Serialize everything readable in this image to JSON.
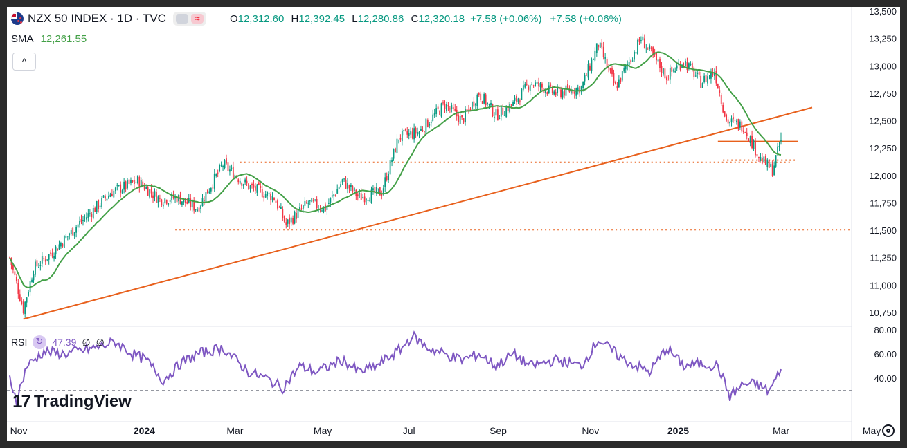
{
  "header": {
    "title": "NZX 50 INDEX · 1D · TVC",
    "flag_icon": "new-zealand-flag-icon",
    "ohlc": {
      "o_label": "O",
      "o": "12,312.60",
      "h_label": "H",
      "h": "12,392.45",
      "l_label": "L",
      "l": "12,280.86",
      "c_label": "C",
      "c": "12,320.18",
      "change1": "+7.58 (+0.06%)",
      "change2": "+7.58 (+0.06%)"
    },
    "colors": {
      "up": "#089981",
      "down": "#f23645"
    }
  },
  "sma": {
    "label": "SMA",
    "value": "12,261.55",
    "color": "#43a047"
  },
  "collapse_icon": "chevron-up-icon",
  "rsi": {
    "label": "RSI",
    "value": "47.39",
    "n1": "∅",
    "n2": "∅",
    "color": "#7e57c2"
  },
  "branding": {
    "logo_text": "TradingView",
    "logo_mark": "17"
  },
  "chart_data": [
    {
      "type": "candlestick",
      "title": "NZX 50 INDEX",
      "interval": "1D",
      "y_ticks": [
        "13,500",
        "13,250",
        "13,000",
        "12,750",
        "12,500",
        "12,250",
        "12,000",
        "11,750",
        "11,500",
        "11,250",
        "11,000",
        "10,750"
      ],
      "ylim": [
        10650,
        13500
      ],
      "x_ticks": [
        "Nov",
        "2024",
        "Mar",
        "May",
        "Jul",
        "Sep",
        "Nov",
        "2025",
        "Mar",
        "May"
      ],
      "close_anchors": [
        [
          0,
          11250
        ],
        [
          8,
          10780
        ],
        [
          14,
          11150
        ],
        [
          25,
          11300
        ],
        [
          40,
          11550
        ],
        [
          60,
          11850
        ],
        [
          75,
          11950
        ],
        [
          88,
          11780
        ],
        [
          98,
          11800
        ],
        [
          110,
          11700
        ],
        [
          125,
          12100
        ],
        [
          140,
          11900
        ],
        [
          155,
          11800
        ],
        [
          162,
          11550
        ],
        [
          175,
          11750
        ],
        [
          185,
          11700
        ],
        [
          195,
          11950
        ],
        [
          205,
          11800
        ],
        [
          218,
          11850
        ],
        [
          228,
          12350
        ],
        [
          240,
          12400
        ],
        [
          255,
          12650
        ],
        [
          265,
          12500
        ],
        [
          275,
          12750
        ],
        [
          285,
          12550
        ],
        [
          295,
          12650
        ],
        [
          305,
          12850
        ],
        [
          320,
          12750
        ],
        [
          335,
          12800
        ],
        [
          345,
          13200
        ],
        [
          355,
          12800
        ],
        [
          370,
          13250
        ],
        [
          385,
          12900
        ],
        [
          395,
          13050
        ],
        [
          405,
          12850
        ],
        [
          413,
          12950
        ],
        [
          420,
          12500
        ],
        [
          430,
          12450
        ],
        [
          440,
          12150
        ],
        [
          447,
          12050
        ],
        [
          452,
          12320
        ]
      ],
      "sma": {
        "label": "SMA",
        "last": "12,261.55"
      },
      "trendline": {
        "from": [
          "Oct 2023",
          10690
        ],
        "to": [
          "Apr 2025",
          12620
        ]
      },
      "horizontal_levels": [
        {
          "value": 12120,
          "style": "dotted",
          "from": "Feb 2024",
          "to": "Apr 2025"
        },
        {
          "value": 11505,
          "style": "dotted",
          "from": "Jan 2024",
          "to": "May 2025"
        },
        {
          "value": 12310,
          "style": "solid",
          "from": "Feb 2025",
          "to": "Apr 2025"
        },
        {
          "value": 12140,
          "style": "dotted",
          "from": "Mar 2025",
          "to": "Apr 2025"
        }
      ],
      "colors": {
        "up": "#089981",
        "down": "#f23645",
        "sma": "#43a047",
        "trend": "#e8601c"
      }
    },
    {
      "type": "line",
      "title": "RSI",
      "value": "47.39",
      "ylim": [
        20,
        85
      ],
      "y_ticks": [
        "80.00",
        "60.00",
        "40.00"
      ],
      "bands": [
        70,
        50,
        30
      ],
      "anchors": [
        [
          0,
          40
        ],
        [
          4,
          22
        ],
        [
          10,
          50
        ],
        [
          20,
          62
        ],
        [
          32,
          60
        ],
        [
          50,
          65
        ],
        [
          62,
          70
        ],
        [
          72,
          60
        ],
        [
          80,
          55
        ],
        [
          90,
          38
        ],
        [
          100,
          52
        ],
        [
          110,
          60
        ],
        [
          125,
          65
        ],
        [
          140,
          45
        ],
        [
          150,
          40
        ],
        [
          160,
          32
        ],
        [
          170,
          50
        ],
        [
          180,
          45
        ],
        [
          195,
          55
        ],
        [
          205,
          45
        ],
        [
          215,
          50
        ],
        [
          230,
          65
        ],
        [
          236,
          75
        ],
        [
          245,
          65
        ],
        [
          255,
          60
        ],
        [
          265,
          55
        ],
        [
          275,
          60
        ],
        [
          285,
          50
        ],
        [
          295,
          60
        ],
        [
          305,
          50
        ],
        [
          320,
          55
        ],
        [
          335,
          50
        ],
        [
          345,
          72
        ],
        [
          360,
          55
        ],
        [
          375,
          45
        ],
        [
          385,
          65
        ],
        [
          395,
          50
        ],
        [
          405,
          52
        ],
        [
          415,
          50
        ],
        [
          422,
          25
        ],
        [
          430,
          35
        ],
        [
          438,
          35
        ],
        [
          445,
          29
        ],
        [
          452,
          47
        ]
      ],
      "color": "#7e57c2"
    }
  ]
}
